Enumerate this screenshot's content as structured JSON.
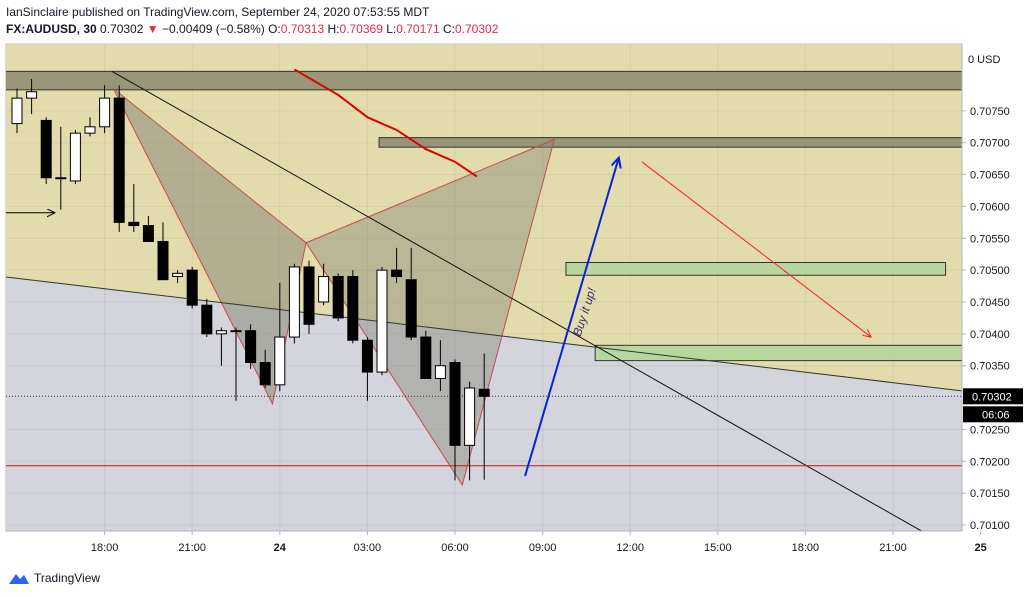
{
  "header": {
    "publisher_line": "IanSinclaire published on TradingView.com, September 24, 2020 07:53:55 MDT",
    "symbol": "FX:AUDUSD, 30",
    "last": "0.70302",
    "change_arrow": "▼",
    "change": "−0.00409 (−0.58%)",
    "o_label": "O:",
    "o_value": "0.70313",
    "h_label": "H:",
    "h_value": "0.70369",
    "l_label": "L:",
    "l_value": "0.70171",
    "c_label": "C:",
    "c_value": "0.70302"
  },
  "footer": {
    "brand": "TradingView",
    "logo_icon": "tradingview-logo-icon"
  },
  "colors": {
    "up_body": "#ffffff",
    "down_body": "#000000",
    "wick": "#000000",
    "zone_dark": "#8c8a6e",
    "zone_green": "#b5d69a",
    "resistance_fill": "#e2dcad",
    "support_fill": "#d3d4dc",
    "pattern_fill": "#8a8a7a",
    "pattern_stroke": "#c0504d",
    "ma_line": "#e00000",
    "arrow_blue": "#0a22d6",
    "arrow_red": "#ff2020"
  },
  "chart_data": {
    "type": "candlestick",
    "currency_label": "USD",
    "ylim": [
      0.70085,
      0.70815
    ],
    "yticks": [
      "0.70750",
      "0.70700",
      "0.70650",
      "0.70600",
      "0.70550",
      "0.70500",
      "0.70450",
      "0.70400",
      "0.70350",
      "0.70250",
      "0.70200",
      "0.70150",
      "0.70100"
    ],
    "xticks": [
      {
        "label": "18:00",
        "t": 6
      },
      {
        "label": "21:00",
        "t": 12
      },
      {
        "label": "24",
        "t": 18
      },
      {
        "label": "03:00",
        "t": 24
      },
      {
        "label": "06:00",
        "t": 30
      },
      {
        "label": "09:00",
        "t": 36
      },
      {
        "label": "12:00",
        "t": 42
      },
      {
        "label": "15:00",
        "t": 48
      },
      {
        "label": "18:00",
        "t": 54
      },
      {
        "label": "21:00",
        "t": 60
      },
      {
        "label": "25",
        "t": 66
      }
    ],
    "price_badge": "0.70302",
    "countdown_badge": "06:06",
    "current_price": 0.70302,
    "red_level": 0.70193,
    "candles": [
      {
        "o": 0.7073,
        "h": 0.70785,
        "l": 0.70715,
        "c": 0.7077
      },
      {
        "o": 0.7077,
        "h": 0.708,
        "l": 0.70745,
        "c": 0.7078
      },
      {
        "o": 0.70735,
        "h": 0.7074,
        "l": 0.70635,
        "c": 0.70645
      },
      {
        "o": 0.70645,
        "h": 0.70725,
        "l": 0.70595,
        "c": 0.70645
      },
      {
        "o": 0.7064,
        "h": 0.7072,
        "l": 0.70635,
        "c": 0.70715
      },
      {
        "o": 0.70715,
        "h": 0.7074,
        "l": 0.7071,
        "c": 0.70725
      },
      {
        "o": 0.70725,
        "h": 0.7079,
        "l": 0.70715,
        "c": 0.7077
      },
      {
        "o": 0.7077,
        "h": 0.7079,
        "l": 0.7056,
        "c": 0.70575
      },
      {
        "o": 0.70575,
        "h": 0.70635,
        "l": 0.7056,
        "c": 0.7057
      },
      {
        "o": 0.7057,
        "h": 0.70585,
        "l": 0.70545,
        "c": 0.70545
      },
      {
        "o": 0.70545,
        "h": 0.70575,
        "l": 0.70485,
        "c": 0.70485
      },
      {
        "o": 0.7049,
        "h": 0.705,
        "l": 0.7048,
        "c": 0.70495
      },
      {
        "o": 0.705,
        "h": 0.70505,
        "l": 0.7044,
        "c": 0.70445
      },
      {
        "o": 0.70445,
        "h": 0.70455,
        "l": 0.70395,
        "c": 0.704
      },
      {
        "o": 0.704,
        "h": 0.7041,
        "l": 0.7035,
        "c": 0.70405
      },
      {
        "o": 0.70405,
        "h": 0.7041,
        "l": 0.70295,
        "c": 0.70405
      },
      {
        "o": 0.70405,
        "h": 0.70415,
        "l": 0.70345,
        "c": 0.70355
      },
      {
        "o": 0.70355,
        "h": 0.70375,
        "l": 0.70315,
        "c": 0.7032
      },
      {
        "o": 0.7032,
        "h": 0.7048,
        "l": 0.7031,
        "c": 0.70395
      },
      {
        "o": 0.70395,
        "h": 0.7051,
        "l": 0.70385,
        "c": 0.70505
      },
      {
        "o": 0.70505,
        "h": 0.70515,
        "l": 0.704,
        "c": 0.70415
      },
      {
        "o": 0.7045,
        "h": 0.7051,
        "l": 0.70445,
        "c": 0.7049
      },
      {
        "o": 0.7049,
        "h": 0.70495,
        "l": 0.7042,
        "c": 0.70425
      },
      {
        "o": 0.7049,
        "h": 0.705,
        "l": 0.70385,
        "c": 0.7039
      },
      {
        "o": 0.7039,
        "h": 0.70395,
        "l": 0.70295,
        "c": 0.7034
      },
      {
        "o": 0.7034,
        "h": 0.70505,
        "l": 0.70335,
        "c": 0.705
      },
      {
        "o": 0.705,
        "h": 0.70535,
        "l": 0.7048,
        "c": 0.7049
      },
      {
        "o": 0.70485,
        "h": 0.70535,
        "l": 0.7039,
        "c": 0.70395
      },
      {
        "o": 0.70395,
        "h": 0.70405,
        "l": 0.7033,
        "c": 0.7033
      },
      {
        "o": 0.7033,
        "h": 0.7039,
        "l": 0.7031,
        "c": 0.7035
      },
      {
        "o": 0.70355,
        "h": 0.7036,
        "l": 0.7017,
        "c": 0.70225
      },
      {
        "o": 0.70225,
        "h": 0.70325,
        "l": 0.7017,
        "c": 0.70315
      },
      {
        "o": 0.70313,
        "h": 0.70369,
        "l": 0.70171,
        "c": 0.70302
      }
    ],
    "annotations": {
      "dark_zones": [
        {
          "t1": -1,
          "t2": 66,
          "p1": 0.70812,
          "p2": 0.70783
        },
        {
          "t1": 24.8,
          "t2": 66,
          "p1": 0.70708,
          "p2": 0.70693
        }
      ],
      "green_zones": [
        {
          "t1": 37.6,
          "t2": 63.6,
          "p1": 0.70512,
          "p2": 0.70492
        },
        {
          "t1": 39.6,
          "t2": 66,
          "p1": 0.70382,
          "p2": 0.70358
        }
      ],
      "wedge_line": {
        "t1": -1,
        "p1": 0.7049,
        "t2": 66,
        "p2": 0.70307
      },
      "long_diag": {
        "t1": 6.5,
        "p1": 0.70812,
        "t2": 62,
        "p2": 0.7009
      },
      "pattern_a": [
        [
          6.6,
          0.70785
        ],
        [
          17.5,
          0.7029
        ],
        [
          19.8,
          0.70543
        ]
      ],
      "pattern_b": [
        [
          19.8,
          0.70543
        ],
        [
          36.8,
          0.70705
        ],
        [
          30.5,
          0.70163
        ]
      ],
      "ma_points": [
        [
          19,
          0.70815
        ],
        [
          22,
          0.70775
        ],
        [
          24,
          0.7074
        ],
        [
          26,
          0.7072
        ],
        [
          28,
          0.7069
        ],
        [
          30,
          0.7067
        ],
        [
          31.5,
          0.70647
        ]
      ],
      "blue_arrow": {
        "t1": 34.8,
        "p1": 0.70177,
        "t2": 41.2,
        "p2": 0.70675
      },
      "red_arrow": {
        "t1": 42.8,
        "p1": 0.7067,
        "t2": 58.5,
        "p2": 0.70395
      },
      "small_arrow": {
        "t1": -1,
        "p1": 0.7059,
        "t2": 2.6,
        "p2": 0.7059
      },
      "buy_text": "Buy it up!"
    }
  }
}
